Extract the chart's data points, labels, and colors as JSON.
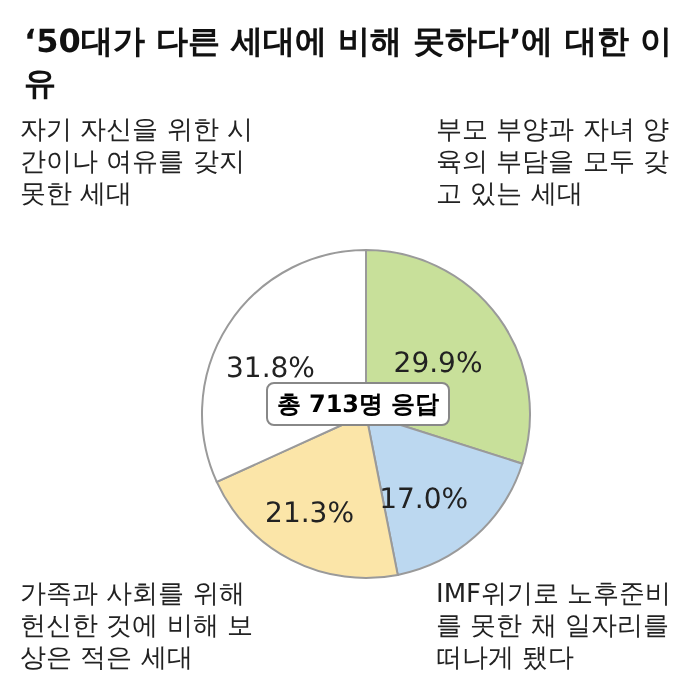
{
  "chart_data": {
    "type": "pie",
    "title": "‘50대가 다른 세대에 비해 못하다’에 대한 이유",
    "categories": [
      "부모 부양과 자녀 양육의 부담을 모두 갖고 있는 세대",
      "IMF위기로 노후준비를 못한 채 일자리를 떠나게 됐다",
      "가족과 사회를 위해 헌신한 것에 비해 보상은 적은 세대",
      "자기 자신을 위한 시간이나 여유를 갖지 못한 세대"
    ],
    "values": [
      29.9,
      17.0,
      21.3,
      31.8
    ],
    "value_labels": [
      "29.9%",
      "17.0%",
      "21.3%",
      "31.8%"
    ],
    "colors": [
      "#c8e09a",
      "#bcd8f0",
      "#fbe5a8",
      "#ffffff"
    ],
    "annotations": [
      "총 713명 응답"
    ],
    "legend": false
  }
}
